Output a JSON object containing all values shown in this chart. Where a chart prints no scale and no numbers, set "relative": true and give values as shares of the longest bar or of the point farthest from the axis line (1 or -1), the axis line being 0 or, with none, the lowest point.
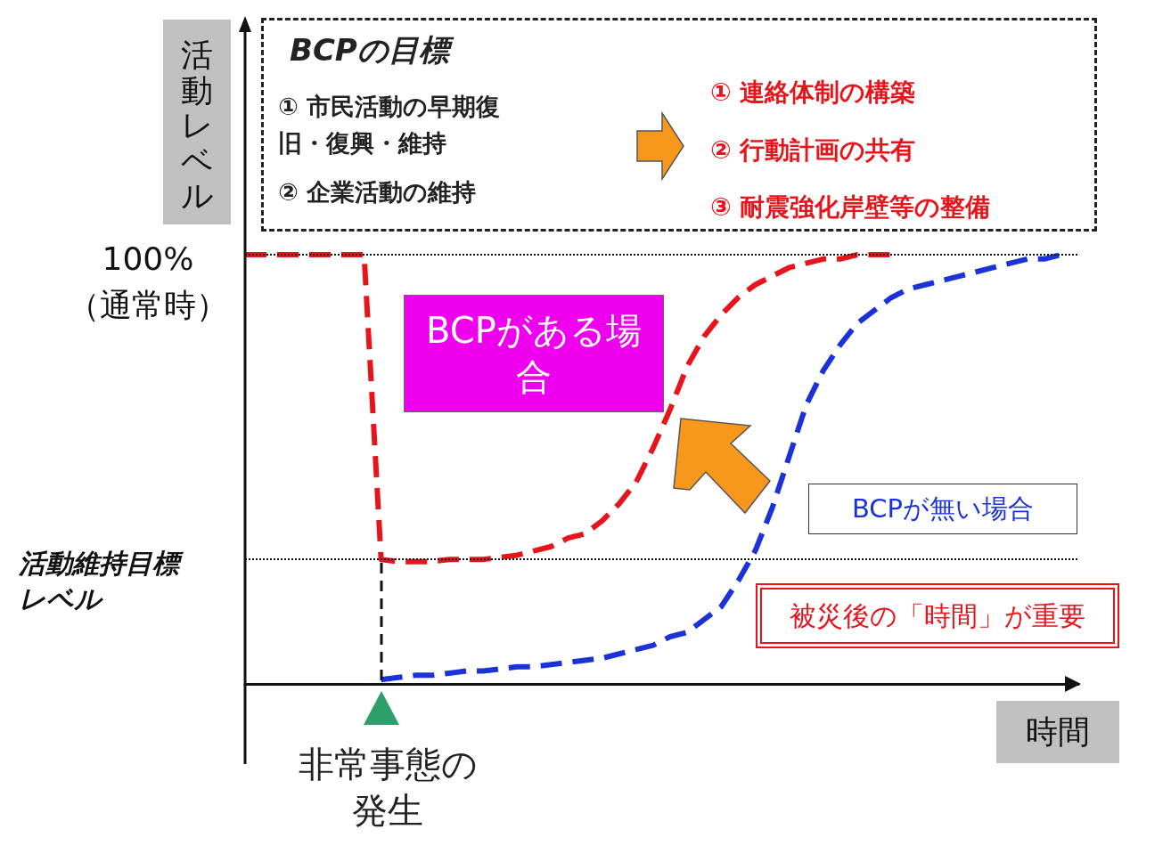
{
  "chart_data": {
    "type": "line",
    "relative": true,
    "xlabel": "時間",
    "ylabel": "活動レベル",
    "categories": [
      null,
      null,
      null,
      null,
      null,
      null,
      null,
      null,
      null,
      null,
      null,
      null,
      null,
      null,
      null,
      null,
      null,
      null,
      null,
      null,
      null,
      null,
      null,
      null,
      null,
      null,
      null,
      null,
      null,
      null,
      null,
      null,
      null,
      null,
      null,
      null,
      null,
      null,
      null,
      null,
      null,
      null,
      null,
      null,
      null,
      null,
      null,
      null,
      null,
      null
    ],
    "series": [
      {
        "name": "BCPがある場合",
        "color": "#e8141b",
        "values": [
          1,
          1,
          1,
          1,
          1,
          1,
          1,
          1,
          0.29,
          0.285,
          0.285,
          0.285,
          0.29,
          0.29,
          0.29,
          0.295,
          0.3,
          0.31,
          0.32,
          0.34,
          0.35,
          0.38,
          0.42,
          0.47,
          0.55,
          0.64,
          0.74,
          0.81,
          0.86,
          0.9,
          0.93,
          0.95,
          0.97,
          0.98,
          0.99,
          0.99,
          1,
          1,
          1,
          null,
          null,
          null,
          null,
          null,
          null,
          null,
          null,
          null,
          null,
          null
        ]
      },
      {
        "name": "BCPが無い場合",
        "color": "#1a32d8",
        "values": [
          null,
          null,
          null,
          null,
          null,
          null,
          null,
          null,
          0.01,
          0.015,
          0.02,
          0.02,
          0.025,
          0.03,
          0.03,
          0.035,
          0.04,
          0.04,
          0.045,
          0.05,
          0.055,
          0.06,
          0.07,
          0.08,
          0.09,
          0.11,
          0.12,
          0.15,
          0.18,
          0.24,
          0.31,
          0.41,
          0.53,
          0.65,
          0.73,
          0.79,
          0.84,
          0.87,
          0.9,
          0.92,
          0.93,
          0.94,
          0.95,
          0.96,
          0.97,
          0.98,
          0.99,
          0.99,
          1,
          null
        ]
      }
    ],
    "ref_lines": [
      {
        "axis": "y",
        "value": 1,
        "label": "100%\n（通常時）",
        "line_style": "dotted"
      },
      {
        "axis": "y",
        "value": 0.29,
        "label": "活動維持目標レベル",
        "line_style": "dotted"
      }
    ],
    "annotations": [
      "BCPの目標",
      "① 市民活動の早期復旧・復興・維持",
      "② 企業活動の維持",
      "① 連絡体制の構築",
      "② 行動計画の共有",
      "③ 耐震強化岸壁等の整備",
      "非常事態の発生",
      "被災後の「時間」が重要"
    ],
    "legend": false,
    "grid": false,
    "marker": "none",
    "line_style": "dashed"
  }
}
